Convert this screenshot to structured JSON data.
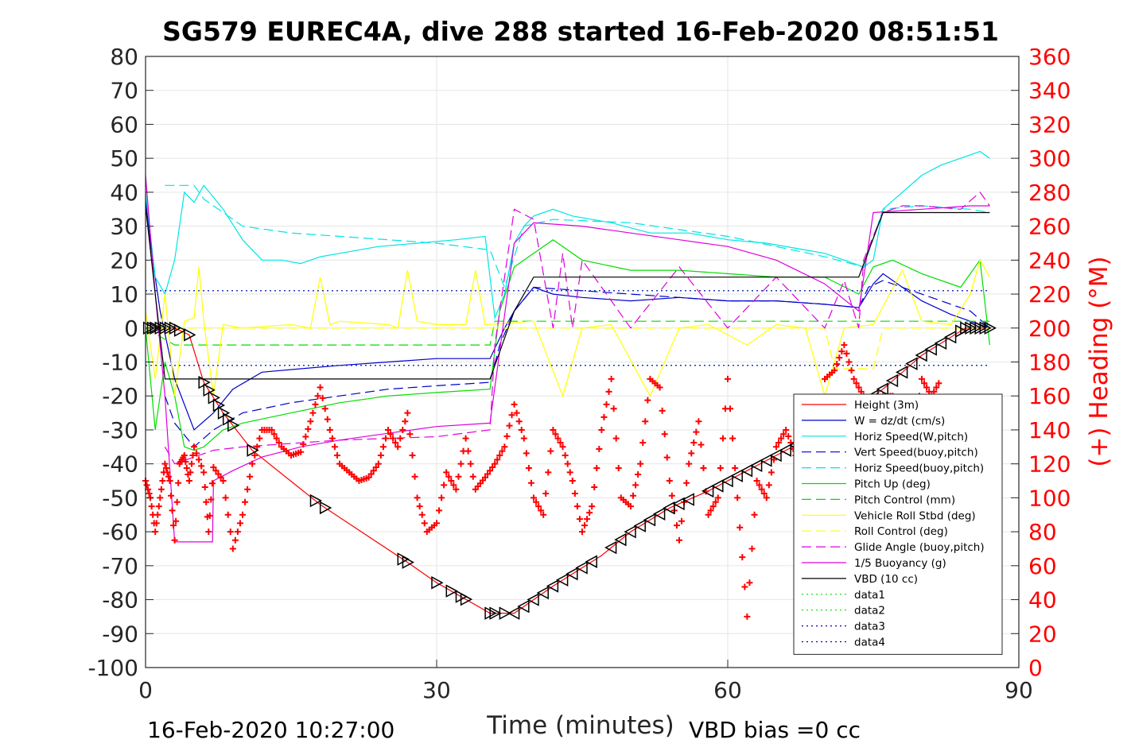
{
  "chart_data": {
    "type": "line",
    "title": "SG579 EUREC4A, dive 288 started 16-Feb-2020 08:51:51",
    "xlabel": "Time (minutes)",
    "ylabel_right": "(+) Heading (°M)",
    "xlim": [
      0,
      90
    ],
    "ylim": [
      -100,
      80
    ],
    "ylim_right": [
      0,
      360
    ],
    "x_ticks": [
      "0",
      "30",
      "60",
      "90"
    ],
    "y_ticks": [
      "80",
      "70",
      "60",
      "50",
      "40",
      "30",
      "20",
      "10",
      "0",
      "-10",
      "-20",
      "-30",
      "-40",
      "-50",
      "-60",
      "-70",
      "-80",
      "-90",
      "-100"
    ],
    "y_right_ticks": [
      "360",
      "340",
      "320",
      "300",
      "280",
      "260",
      "240",
      "220",
      "200",
      "180",
      "160",
      "140",
      "120",
      "100",
      "80",
      "60",
      "40",
      "20",
      "0"
    ],
    "grid": true,
    "legend_position": "lower-right",
    "footer_left": "16-Feb-2020 10:27:00",
    "footer_right": "VBD bias =0 cc",
    "colors": {
      "height": "#ff0000",
      "w": "#0000cc",
      "horiz": "#00e5e5",
      "pitch": "#00dd00",
      "roll": "#ffff00",
      "glide": "#dd00dd",
      "buoy": "#dd00dd",
      "vbd": "#000000",
      "heading": "#ff0000"
    },
    "legend": [
      {
        "name": "Height (3m)",
        "color": "#ff0000",
        "style": "solid"
      },
      {
        "name": "W = dz/dt (cm/s)",
        "color": "#0000cc",
        "style": "solid"
      },
      {
        "name": "Horiz Speed(W,pitch)",
        "color": "#00e5e5",
        "style": "solid"
      },
      {
        "name": "Vert Speed(buoy,pitch)",
        "color": "#0000cc",
        "style": "dashed"
      },
      {
        "name": "Horiz Speed(buoy,pitch)",
        "color": "#00e5e5",
        "style": "dashed"
      },
      {
        "name": "Pitch Up (deg)",
        "color": "#00dd00",
        "style": "solid"
      },
      {
        "name": "Pitch Control (mm)",
        "color": "#00dd00",
        "style": "dashed"
      },
      {
        "name": "Vehicle Roll Stbd (deg)",
        "color": "#ffff00",
        "style": "solid"
      },
      {
        "name": "Roll Control (deg)",
        "color": "#ffff00",
        "style": "dashed"
      },
      {
        "name": "Glide Angle (buoy,pitch)",
        "color": "#dd00dd",
        "style": "dashed"
      },
      {
        "name": "1/5 Buoyancy (g)",
        "color": "#dd00dd",
        "style": "solid"
      },
      {
        "name": "VBD (10 cc)",
        "color": "#000000",
        "style": "solid"
      },
      {
        "name": "data1",
        "color": "#00dd00",
        "style": "dotted"
      },
      {
        "name": "data2",
        "color": "#00dd00",
        "style": "dotted"
      },
      {
        "name": "data3",
        "color": "#0000cc",
        "style": "dotted"
      },
      {
        "name": "data4",
        "color": "#0000cc",
        "style": "dotted"
      }
    ],
    "series": [
      {
        "name": "Height (3m)",
        "x": [
          0,
          1,
          2,
          3,
          4.5,
          6,
          8,
          11,
          18,
          27,
          30,
          35.5,
          38,
          42,
          47,
          50,
          54,
          58,
          62,
          66,
          70,
          76,
          80,
          84.5,
          87
        ],
        "y": [
          0,
          0,
          0,
          0,
          -2,
          -16,
          -25,
          -36,
          -52,
          -69,
          -75,
          -84,
          -84,
          -76,
          -67,
          -60,
          -53,
          -48,
          -42,
          -36,
          -30,
          -18,
          -8,
          0,
          0
        ]
      },
      {
        "name": "W = dz/dt (cm/s)",
        "x": [
          0,
          0.5,
          1.5,
          3,
          5,
          7,
          9,
          12,
          16,
          20,
          25,
          30,
          35.5,
          37,
          38,
          40,
          42,
          45,
          50,
          55,
          60,
          65,
          70,
          73.5,
          75,
          76,
          78,
          80,
          83,
          85,
          87
        ],
        "y": [
          38,
          25,
          5,
          -15,
          -30,
          -25,
          -18,
          -13,
          -12,
          -11,
          -10,
          -9,
          -9,
          0,
          5,
          12,
          10,
          9,
          8,
          9,
          8,
          8,
          7,
          6,
          13,
          16,
          12,
          8,
          4,
          2,
          0
        ]
      },
      {
        "name": "Horiz Speed(W,pitch)",
        "x": [
          0,
          1,
          2,
          3,
          4,
          5,
          6,
          8,
          10,
          12,
          14,
          16,
          18,
          20,
          24,
          28,
          32,
          35,
          36,
          37,
          38,
          39,
          40,
          42,
          44,
          48,
          52,
          56,
          60,
          64,
          68,
          70,
          72,
          74,
          75,
          76,
          78,
          80,
          82,
          84,
          86,
          87
        ],
        "y": [
          40,
          15,
          10,
          20,
          40,
          37,
          42,
          35,
          26,
          20,
          20,
          19,
          21,
          22,
          24,
          25,
          26,
          27,
          3,
          10,
          25,
          30,
          33,
          35,
          33,
          31,
          28,
          28,
          26,
          25,
          23,
          22,
          20,
          18,
          20,
          35,
          40,
          45,
          48,
          50,
          52,
          50
        ]
      },
      {
        "name": "Vert Speed(buoy,pitch)",
        "x": [
          2,
          3,
          5,
          7,
          10,
          15,
          20,
          25,
          30,
          35.5,
          36.5,
          38,
          40,
          45,
          50,
          55,
          60,
          65,
          70,
          73.5,
          74.5,
          76,
          80,
          85,
          87
        ],
        "y": [
          -20,
          -28,
          -35,
          -30,
          -25,
          -22,
          -20,
          -18,
          -17,
          -16,
          -5,
          5,
          12,
          11,
          10,
          9,
          8,
          8,
          7,
          6,
          12,
          14,
          10,
          5,
          0
        ]
      },
      {
        "name": "Horiz Speed(buoy,pitch)",
        "x": [
          2,
          3,
          5,
          6,
          8,
          10,
          15,
          20,
          25,
          30,
          35.5,
          37,
          39,
          42,
          50,
          55,
          60,
          65,
          70,
          74,
          76,
          80,
          85,
          87
        ],
        "y": [
          42,
          42,
          42,
          38,
          34,
          30,
          28,
          27,
          26,
          25,
          23,
          12,
          30,
          32,
          31,
          29,
          27,
          24,
          21,
          18,
          35,
          36,
          35,
          34
        ]
      },
      {
        "name": "Pitch Up (deg)",
        "x": [
          0,
          1,
          2,
          3,
          4,
          5,
          6,
          8,
          10,
          15,
          20,
          25,
          30,
          35.5,
          36.5,
          38,
          40,
          42,
          45,
          50,
          55,
          60,
          65,
          70,
          73.5,
          75,
          77,
          80,
          84,
          86,
          87
        ],
        "y": [
          0,
          -30,
          -10,
          -20,
          -35,
          -36,
          -35,
          -30,
          -28,
          -25,
          -22,
          -20,
          -19,
          -18,
          5,
          18,
          22,
          26,
          20,
          17,
          17,
          16,
          15,
          15,
          10,
          18,
          20,
          16,
          12,
          20,
          -5
        ]
      },
      {
        "name": "Pitch Control (mm)",
        "x": [
          0,
          3,
          4,
          10,
          20,
          35.5,
          36,
          40,
          87
        ],
        "y": [
          0,
          -5,
          -5,
          -5,
          -5,
          -5,
          2,
          2,
          2
        ]
      },
      {
        "name": "Vehicle Roll Stbd (deg)",
        "x": [
          0,
          1,
          2,
          3,
          4,
          5,
          5.5,
          6,
          7,
          8,
          10,
          15,
          17,
          18,
          19,
          20,
          25,
          26,
          27,
          28,
          30,
          33,
          34,
          35,
          40,
          43,
          45,
          48,
          52,
          55,
          58,
          62,
          65,
          68,
          70,
          72,
          75,
          78,
          80,
          83,
          85,
          86,
          87
        ],
        "y": [
          5,
          -15,
          10,
          -20,
          2,
          3,
          18,
          2,
          -20,
          1,
          0,
          1,
          0,
          15,
          1,
          2,
          1,
          0,
          17,
          2,
          1,
          1,
          17,
          1,
          2,
          -20,
          0,
          1,
          -20,
          0,
          1,
          -5,
          1,
          0,
          -20,
          0,
          1,
          17,
          2,
          1,
          10,
          20,
          15
        ]
      },
      {
        "name": "Roll Control (deg)",
        "x": [
          0,
          35.5,
          36,
          70,
          71,
          75,
          76,
          87
        ],
        "y": [
          0,
          0,
          0,
          0,
          -12,
          -12,
          0,
          0
        ]
      },
      {
        "name": "Glide Angle (buoy,pitch)",
        "x": [
          2,
          3,
          5,
          7,
          10,
          20,
          30,
          35.5,
          36,
          38,
          40,
          42,
          43,
          44,
          45,
          50,
          55,
          60,
          65,
          70,
          72,
          73.5,
          74,
          76,
          78,
          80,
          84,
          86,
          87
        ],
        "y": [
          -35,
          -40,
          -38,
          -36,
          -35,
          -33,
          -32,
          -30,
          -5,
          35,
          32,
          0,
          22,
          0,
          20,
          0,
          18,
          0,
          15,
          0,
          14,
          0,
          20,
          34,
          36,
          36,
          35,
          40,
          36
        ]
      },
      {
        "name": "1/5 Buoyancy (g)",
        "x": [
          0,
          1,
          2,
          3,
          5,
          6.9,
          7,
          9,
          12,
          16,
          20,
          25,
          30,
          35.5,
          38,
          40,
          45,
          50,
          55,
          60,
          65,
          70,
          73.5,
          75,
          80,
          85,
          87
        ],
        "y": [
          45,
          10,
          -20,
          -63,
          -63,
          -63,
          -45,
          -42,
          -38,
          -35,
          -33,
          -31,
          -29,
          -28,
          25,
          31,
          30,
          28,
          26,
          24,
          20,
          13,
          5,
          34,
          35,
          36,
          36
        ]
      },
      {
        "name": "VBD (10 cc)",
        "x": [
          0,
          1,
          1.8,
          2,
          10,
          20,
          30,
          35.5,
          38,
          40,
          45,
          50,
          60,
          70,
          73.5,
          76,
          80,
          87
        ],
        "y": [
          36,
          10,
          -10,
          -15,
          -15,
          -15,
          -15,
          -15,
          5,
          15,
          15,
          15,
          15,
          15,
          15,
          34,
          34,
          34
        ]
      },
      {
        "name": "data1",
        "x": [
          0,
          87
        ],
        "y": [
          -11,
          -11
        ]
      },
      {
        "name": "data2",
        "x": [
          0,
          87
        ],
        "y": [
          11,
          11
        ]
      },
      {
        "name": "data3",
        "x": [
          0,
          87
        ],
        "y": [
          11,
          11
        ]
      },
      {
        "name": "data4",
        "x": [
          0,
          87
        ],
        "y": [
          -11,
          -11
        ]
      },
      {
        "name": "Heading",
        "axis": "right",
        "x": [
          0,
          0.5,
          1,
          1.5,
          2,
          2.5,
          3,
          3.5,
          4,
          4.5,
          5,
          6,
          6.5,
          7,
          8,
          9,
          10,
          11,
          12,
          13,
          14,
          15,
          16,
          17,
          18,
          19,
          20,
          21,
          22,
          23,
          24,
          25,
          26,
          27,
          28,
          29,
          30,
          31,
          32,
          33,
          34,
          35,
          36,
          37,
          38,
          39,
          40,
          41,
          42,
          43,
          44,
          45,
          46,
          47,
          48,
          49,
          50,
          51,
          52,
          53,
          54,
          55,
          56,
          57,
          58,
          59,
          60,
          61,
          62,
          63,
          64,
          65,
          66,
          67,
          68,
          69,
          70,
          71,
          72,
          73,
          74,
          75,
          76,
          77,
          78,
          79,
          80,
          81,
          82
        ],
        "y": [
          110,
          100,
          80,
          100,
          120,
          110,
          75,
          120,
          125,
          110,
          130,
          115,
          80,
          118,
          110,
          70,
          90,
          120,
          140,
          140,
          130,
          125,
          127,
          145,
          165,
          140,
          120,
          115,
          110,
          112,
          120,
          140,
          130,
          150,
          100,
          80,
          85,
          115,
          105,
          135,
          105,
          112,
          120,
          130,
          155,
          135,
          100,
          90,
          140,
          130,
          110,
          80,
          95,
          140,
          170,
          100,
          95,
          120,
          170,
          165,
          110,
          75,
          120,
          145,
          90,
          100,
          170,
          100,
          30,
          110,
          100,
          130,
          140,
          125,
          125,
          110,
          170,
          175,
          190,
          170,
          160,
          150,
          160,
          160,
          135,
          130,
          170,
          160,
          170
        ]
      }
    ],
    "markers_triangle_x": [
      0.3,
      0.7,
      1,
      1.5,
      2,
      2.5,
      3,
      3.5,
      4.5,
      6,
      6.5,
      7,
      7.5,
      8,
      8.5,
      9,
      11,
      17.5,
      18.5,
      26.5,
      27,
      30,
      31.5,
      32.5,
      33,
      35.5,
      36,
      37,
      38,
      39,
      40,
      41,
      42,
      43,
      44,
      45,
      46,
      48,
      49,
      50,
      51,
      52,
      53,
      54,
      55,
      56,
      58,
      59,
      60,
      61,
      62,
      63,
      64,
      65,
      66,
      67,
      75,
      76,
      77,
      78,
      79,
      80,
      81,
      82,
      83,
      84,
      84.5,
      85,
      85.5,
      86,
      86.5,
      87
    ]
  }
}
